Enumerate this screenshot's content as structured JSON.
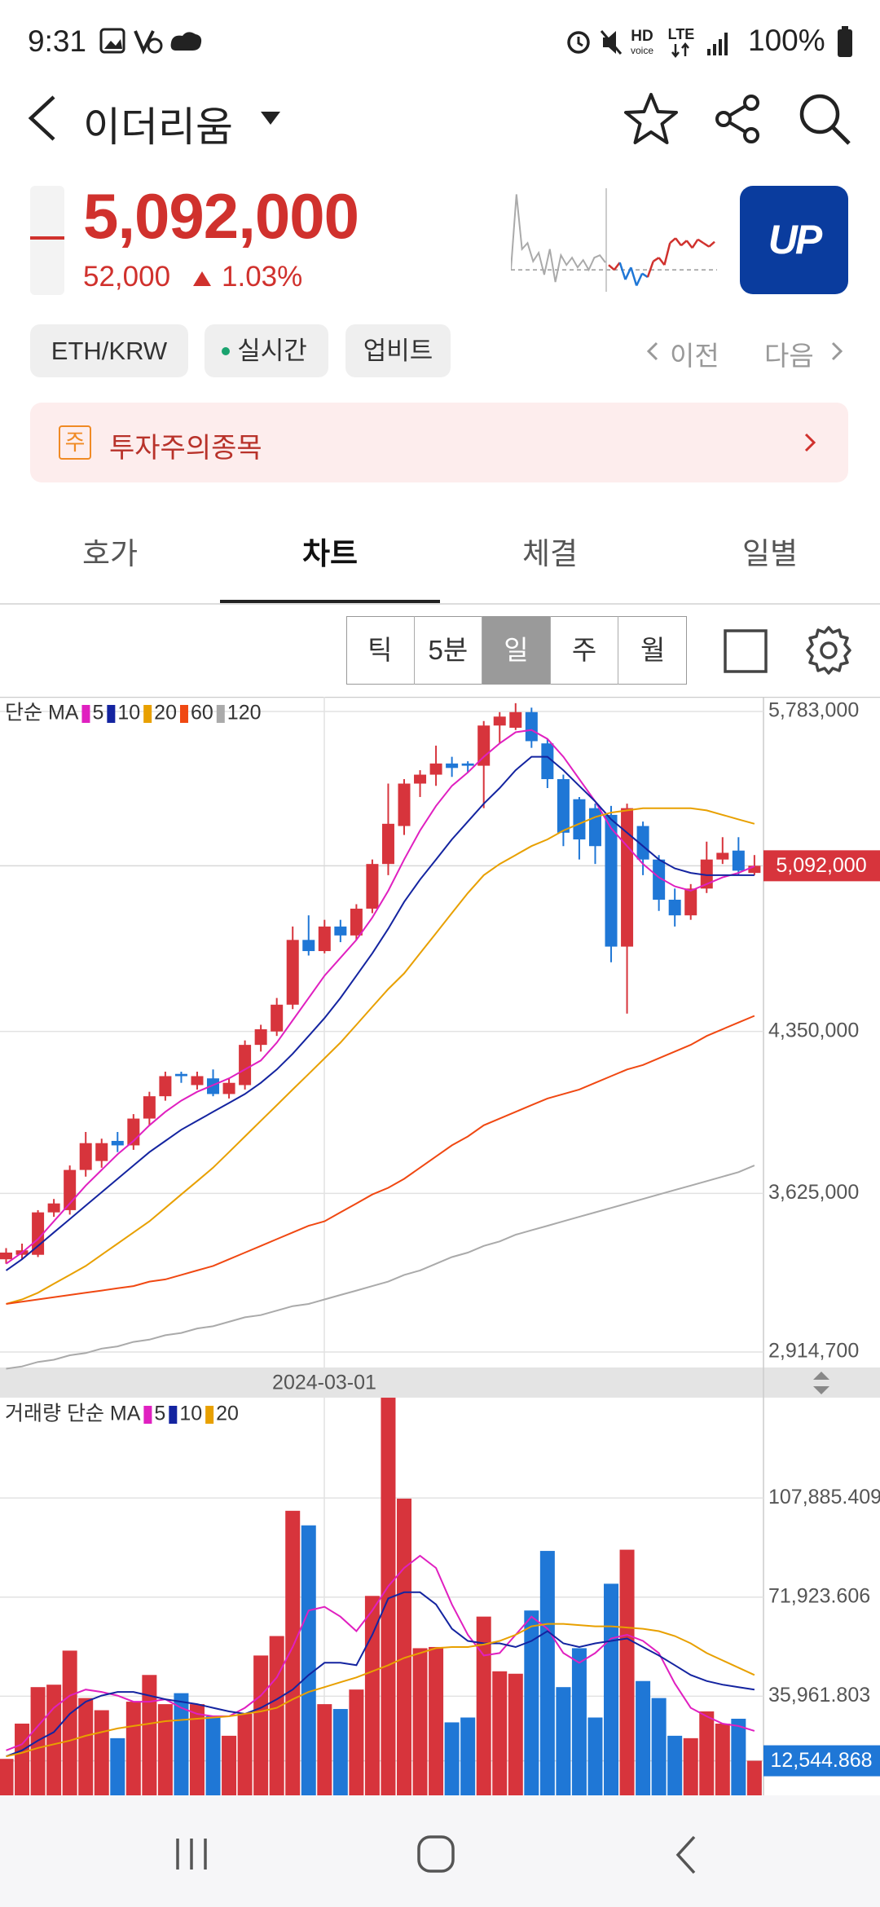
{
  "status_bar": {
    "time": "9:31",
    "hd": "HD",
    "voice": "voice",
    "lte": "LTE",
    "battery": "100%"
  },
  "header": {
    "title": "이더리움"
  },
  "price": {
    "current": "5,092,000",
    "change": "52,000",
    "change_pct": "1.03%"
  },
  "logo": "UP",
  "sparkline": {
    "base": 5040000,
    "ylim": [
      5004000,
      5174000
    ],
    "prev_color": "#aaaaaa",
    "up_color": "#d0312d",
    "down_color": "#1f77d6",
    "prev": [
      5040000,
      5164000,
      5074000,
      5084000,
      5054000,
      5068000,
      5032000,
      5074000,
      5020000,
      5064000,
      5048000,
      5060000,
      5044000,
      5056000,
      5040000,
      5060000,
      5064000,
      5052000
    ],
    "today": [
      5048000,
      5040000,
      5052000,
      5024000,
      5044000,
      5014000,
      5034000,
      5028000,
      5054000,
      5060000,
      5048000,
      5084000,
      5092000,
      5080000,
      5088000,
      5076000,
      5090000,
      5084000,
      5078000,
      5086000
    ]
  },
  "chips": [
    "ETH/KRW",
    "실시간",
    "업비트"
  ],
  "nav": {
    "prev": "이전",
    "next": "다음"
  },
  "notice": {
    "badge": "주",
    "text": "투자주의종목"
  },
  "tabs": [
    "호가",
    "차트",
    "체결",
    "일별"
  ],
  "active_tab": 1,
  "periods": [
    "틱",
    "5분",
    "일",
    "주",
    "월"
  ],
  "active_period": 2,
  "chart_data": [
    {
      "type": "candlestick",
      "legend_title": "단순 MA",
      "x_label": "2024-03-01",
      "up_color": "#d7343c",
      "down_color": "#1f77d6",
      "grid": true,
      "ylim": [
        2914700,
        5783000
      ],
      "yticks": [
        {
          "value": 2914700,
          "label": "2,914,700"
        },
        {
          "value": 3625000,
          "label": "3,625,000"
        },
        {
          "value": 4350000,
          "label": "4,350,000"
        },
        {
          "value": 5783000,
          "label": "5,783,000"
        }
      ],
      "current": {
        "value": 5092000,
        "label": "5,092,000",
        "color": "#d7343c"
      },
      "open": [
        3330000,
        3350000,
        3350000,
        3540000,
        3550000,
        3730000,
        3770000,
        3860000,
        3840000,
        3960000,
        4060000,
        4160000,
        4110000,
        4140000,
        4070000,
        4110000,
        4290000,
        4350000,
        4470000,
        4760000,
        4710000,
        4820000,
        4780000,
        4900000,
        5100000,
        5270000,
        5460000,
        5500000,
        5550000,
        5550000,
        5540000,
        5720000,
        5710000,
        5780000,
        5640000,
        5480000,
        5390000,
        5350000,
        5320000,
        4730000,
        5270000,
        5120000,
        4940000,
        4870000,
        4990000,
        5120000,
        5160000,
        5060000
      ],
      "high": [
        3380000,
        3400000,
        3550000,
        3600000,
        3750000,
        3900000,
        3870000,
        3900000,
        3980000,
        4080000,
        4170000,
        4170000,
        4170000,
        4180000,
        4140000,
        4310000,
        4380000,
        4500000,
        4820000,
        4870000,
        4850000,
        4850000,
        4920000,
        5120000,
        5460000,
        5480000,
        5520000,
        5630000,
        5580000,
        5560000,
        5740000,
        5780000,
        5820000,
        5800000,
        5660000,
        5500000,
        5400000,
        5370000,
        5360000,
        5370000,
        5290000,
        5140000,
        4990000,
        5010000,
        5200000,
        5220000,
        5220000,
        5140000
      ],
      "low": [
        3310000,
        3330000,
        3340000,
        3520000,
        3530000,
        3700000,
        3740000,
        3810000,
        3820000,
        3930000,
        4040000,
        4120000,
        4090000,
        4060000,
        4050000,
        4090000,
        4260000,
        4330000,
        4450000,
        4690000,
        4700000,
        4750000,
        4760000,
        4880000,
        5050000,
        5230000,
        5400000,
        5450000,
        5490000,
        5510000,
        5350000,
        5640000,
        5700000,
        5620000,
        5440000,
        5180000,
        5120000,
        5100000,
        4660000,
        4430000,
        5050000,
        4890000,
        4820000,
        4850000,
        4970000,
        5100000,
        5050000,
        5050000
      ],
      "close": [
        3360000,
        3370000,
        3540000,
        3580000,
        3730000,
        3850000,
        3850000,
        3840000,
        3960000,
        4060000,
        4150000,
        4150000,
        4150000,
        4070000,
        4120000,
        4290000,
        4360000,
        4470000,
        4760000,
        4710000,
        4820000,
        4780000,
        4900000,
        5100000,
        5280000,
        5460000,
        5500000,
        5550000,
        5530000,
        5540000,
        5720000,
        5760000,
        5780000,
        5650000,
        5480000,
        5240000,
        5210000,
        5180000,
        4730000,
        5350000,
        5120000,
        4940000,
        4870000,
        4990000,
        5120000,
        5150000,
        5070000,
        5092000
      ],
      "series": [
        {
          "name": "5",
          "color": "#e020c0",
          "values": [
            3310000,
            3360000,
            3420000,
            3500000,
            3580000,
            3660000,
            3730000,
            3800000,
            3860000,
            3930000,
            3990000,
            4040000,
            4080000,
            4110000,
            4140000,
            4180000,
            4220000,
            4300000,
            4400000,
            4500000,
            4600000,
            4680000,
            4760000,
            4860000,
            4980000,
            5120000,
            5250000,
            5360000,
            5450000,
            5510000,
            5580000,
            5640000,
            5690000,
            5700000,
            5660000,
            5580000,
            5480000,
            5380000,
            5260000,
            5180000,
            5100000,
            5040000,
            5000000,
            4980000,
            5010000,
            5040000,
            5060000,
            5090000
          ]
        },
        {
          "name": "10",
          "color": "#1424a0",
          "values": [
            3280000,
            3330000,
            3390000,
            3450000,
            3510000,
            3570000,
            3630000,
            3690000,
            3750000,
            3810000,
            3860000,
            3910000,
            3950000,
            3990000,
            4030000,
            4070000,
            4120000,
            4180000,
            4250000,
            4330000,
            4410000,
            4500000,
            4600000,
            4700000,
            4810000,
            4930000,
            5030000,
            5120000,
            5210000,
            5290000,
            5370000,
            5440000,
            5520000,
            5580000,
            5580000,
            5520000,
            5450000,
            5380000,
            5300000,
            5240000,
            5180000,
            5120000,
            5080000,
            5060000,
            5050000,
            5050000,
            5050000,
            5050000
          ]
        },
        {
          "name": "20",
          "color": "#e8a000",
          "values": [
            3130000,
            3150000,
            3180000,
            3220000,
            3260000,
            3300000,
            3350000,
            3400000,
            3450000,
            3500000,
            3560000,
            3620000,
            3680000,
            3740000,
            3810000,
            3880000,
            3950000,
            4020000,
            4090000,
            4160000,
            4230000,
            4300000,
            4380000,
            4460000,
            4540000,
            4610000,
            4700000,
            4790000,
            4880000,
            4970000,
            5050000,
            5100000,
            5140000,
            5180000,
            5210000,
            5250000,
            5280000,
            5310000,
            5330000,
            5340000,
            5350000,
            5350000,
            5350000,
            5350000,
            5340000,
            5320000,
            5300000,
            5280000
          ]
        },
        {
          "name": "60",
          "color": "#f04812",
          "values": [
            3130000,
            3140000,
            3150000,
            3160000,
            3170000,
            3180000,
            3190000,
            3200000,
            3210000,
            3230000,
            3240000,
            3260000,
            3280000,
            3300000,
            3330000,
            3360000,
            3390000,
            3420000,
            3450000,
            3480000,
            3500000,
            3540000,
            3580000,
            3620000,
            3650000,
            3690000,
            3740000,
            3790000,
            3840000,
            3880000,
            3930000,
            3960000,
            3990000,
            4020000,
            4050000,
            4070000,
            4090000,
            4120000,
            4150000,
            4180000,
            4200000,
            4230000,
            4260000,
            4290000,
            4330000,
            4360000,
            4390000,
            4420000
          ]
        },
        {
          "name": "120",
          "color": "#aaaaaa",
          "values": [
            2840000,
            2850000,
            2870000,
            2880000,
            2900000,
            2910000,
            2930000,
            2940000,
            2960000,
            2970000,
            2990000,
            3000000,
            3020000,
            3030000,
            3050000,
            3070000,
            3080000,
            3100000,
            3120000,
            3130000,
            3150000,
            3170000,
            3190000,
            3210000,
            3230000,
            3260000,
            3280000,
            3310000,
            3340000,
            3360000,
            3390000,
            3410000,
            3440000,
            3460000,
            3480000,
            3500000,
            3520000,
            3540000,
            3560000,
            3580000,
            3600000,
            3620000,
            3640000,
            3660000,
            3680000,
            3700000,
            3720000,
            3750000
          ]
        }
      ]
    },
    {
      "type": "bar",
      "legend_title": "거래량 단순 MA",
      "grid": true,
      "ylim": [
        0,
        144300
      ],
      "yticks": [
        {
          "value": 35961.803,
          "label": "35,961.803"
        },
        {
          "value": 71923.606,
          "label": "71,923.606"
        },
        {
          "value": 107885.409,
          "label": "107,885.409"
        }
      ],
      "current": {
        "value": 12544.868,
        "label": "12,544.868",
        "color": "#1f77d6"
      },
      "values": [
        13240,
        26030,
        39270,
        40150,
        52510,
        35300,
        30890,
        20740,
        33980,
        43680,
        33090,
        37070,
        33090,
        28680,
        21620,
        29560,
        50740,
        57800,
        103250,
        97960,
        33090,
        31330,
        38390,
        72360,
        144290,
        107660,
        53390,
        53830,
        26480,
        28240,
        64860,
        45010,
        44130,
        67070,
        88690,
        39270,
        53390,
        28240,
        76780,
        89130,
        41480,
        35300,
        21620,
        20740,
        30450,
        26030,
        27800,
        12544.868
      ],
      "series": [
        {
          "name": "5",
          "color": "#e020c0",
          "values": [
            16330,
            18530,
            25150,
            31770,
            36180,
            38390,
            37510,
            36180,
            33980,
            33980,
            34860,
            31770,
            29560,
            28680,
            28680,
            31770,
            36180,
            42800,
            53830,
            67070,
            68390,
            64860,
            59570,
            67070,
            75900,
            82510,
            86930,
            82510,
            69280,
            58250,
            50740,
            51620,
            58250,
            64860,
            60450,
            51620,
            48100,
            51620,
            56920,
            58250,
            56040,
            51620,
            40600,
            31770,
            28680,
            26030,
            25150,
            23390
          ]
        },
        {
          "name": "10",
          "color": "#1424a0",
          "values": [
            14120,
            16330,
            19860,
            22950,
            29560,
            33980,
            36180,
            37510,
            37510,
            36180,
            34860,
            33980,
            33090,
            31770,
            30450,
            29560,
            31770,
            34860,
            38390,
            43680,
            48100,
            48100,
            47210,
            58250,
            71480,
            73690,
            73690,
            69280,
            60450,
            56040,
            55160,
            55160,
            53830,
            56040,
            59570,
            55160,
            53830,
            55160,
            56040,
            56920,
            53830,
            50740,
            47210,
            43680,
            41480,
            40150,
            39270,
            38390
          ]
        },
        {
          "name": "20",
          "color": "#e8a000",
          "values": [
            14120,
            15440,
            17210,
            18530,
            19860,
            21620,
            22950,
            24270,
            25150,
            26030,
            26920,
            27360,
            27800,
            28240,
            28680,
            29560,
            30450,
            31770,
            34860,
            37510,
            39270,
            41040,
            42800,
            45010,
            47210,
            49860,
            51620,
            53390,
            53830,
            53830,
            54720,
            56040,
            58250,
            61340,
            62220,
            62220,
            61780,
            61340,
            61340,
            60890,
            60450,
            59570,
            57800,
            55160,
            51620,
            48980,
            46330,
            43680
          ]
        }
      ]
    }
  ]
}
